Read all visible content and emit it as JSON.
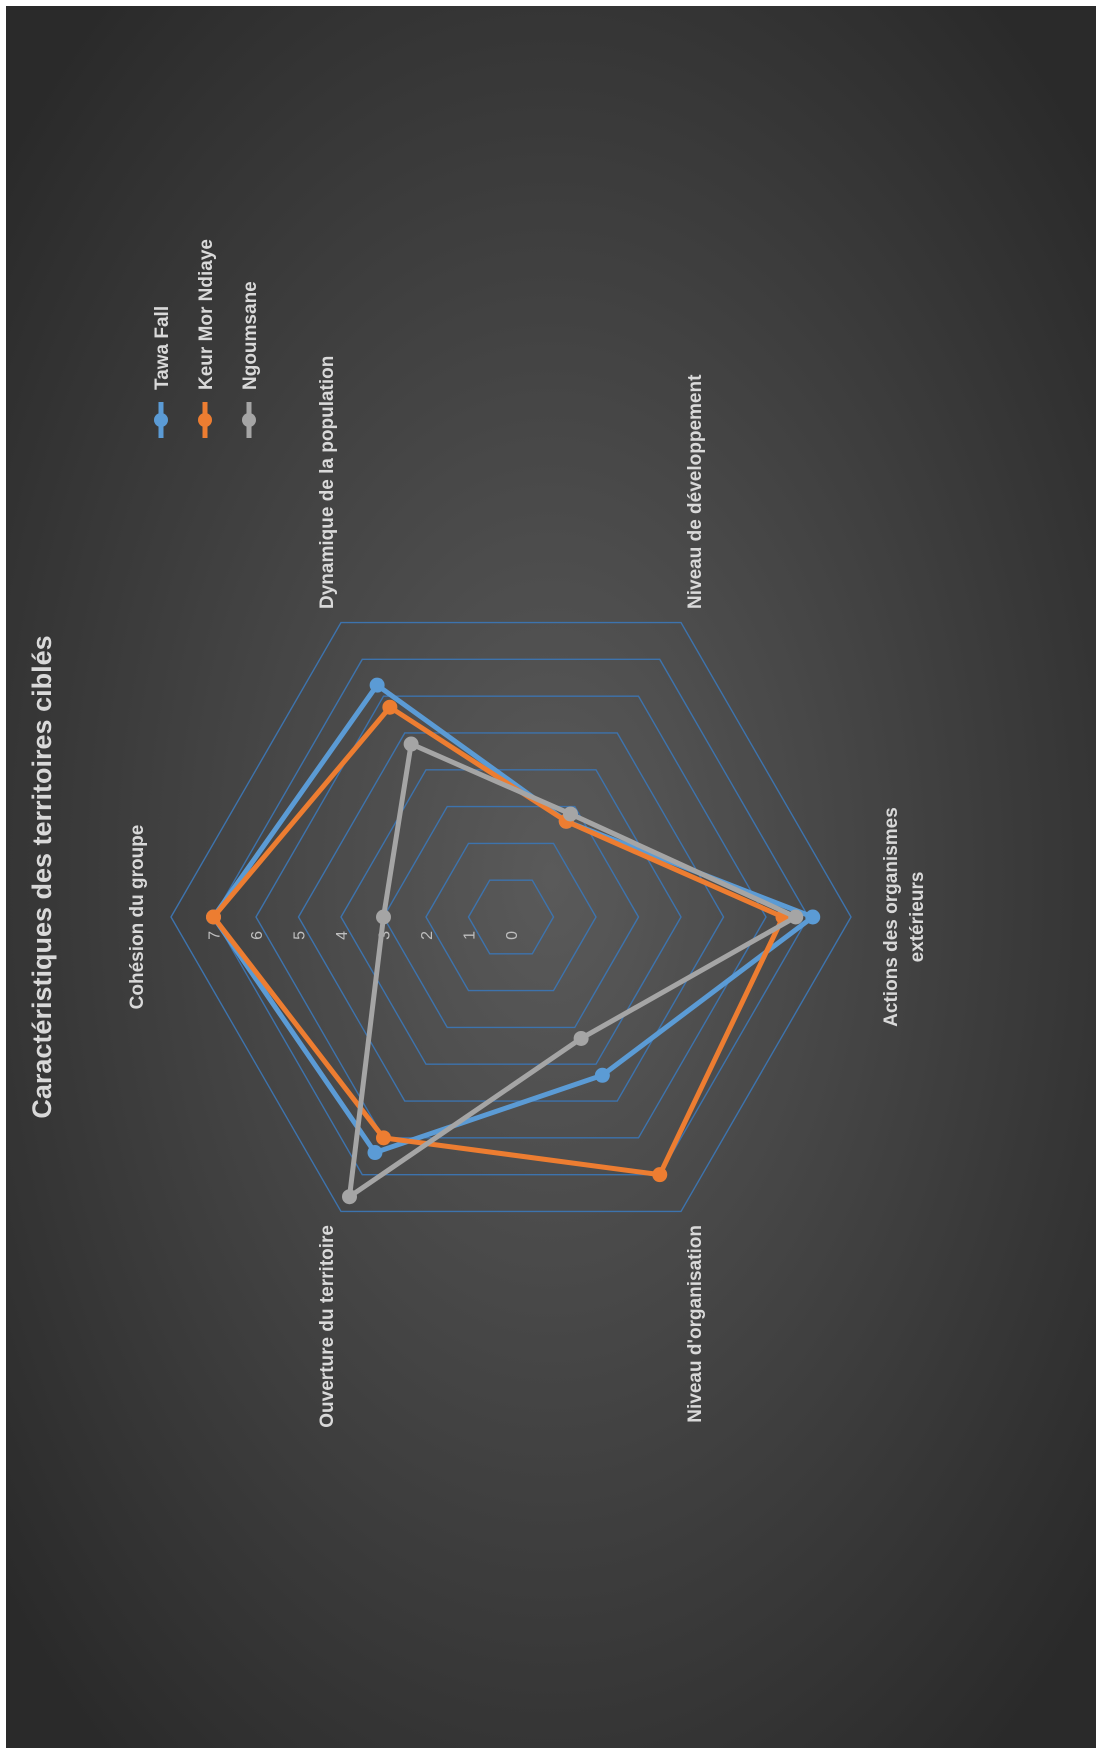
{
  "chart_data": {
    "type": "radar",
    "title": "Caractéristiques des territoires ciblés",
    "categories": [
      "Cohésion du groupe",
      "Dynamique de la population",
      "Niveau de développement",
      "Actions des organismes extérieurs",
      "Niveau d'organisation",
      "Ouverture du territoire"
    ],
    "category_label_lines": [
      [
        "Cohésion du groupe"
      ],
      [
        "Dynamique de la population"
      ],
      [
        "Niveau de développement"
      ],
      [
        "Actions des organismes",
        "extérieurs"
      ],
      [
        "Niveau d'organisation"
      ],
      [
        "Ouverture du territoire"
      ]
    ],
    "scale": {
      "min": 0,
      "max": 8,
      "step": 1
    },
    "tick_labels": [
      "0",
      "1",
      "2",
      "3",
      "4",
      "5",
      "6",
      "7"
    ],
    "series": [
      {
        "name": "Tawa Fall",
        "color": "#5b9bd5",
        "values": [
          7.0,
          6.3,
          2.6,
          7.1,
          4.3,
          6.4
        ]
      },
      {
        "name": "Keur Mor Ndiaye",
        "color": "#ed7d31",
        "values": [
          7.0,
          5.7,
          2.6,
          6.4,
          7.0,
          6.0
        ]
      },
      {
        "name": "Ngoumsane",
        "color": "#a5a5a5",
        "values": [
          3.0,
          4.7,
          2.8,
          6.7,
          3.3,
          7.6
        ]
      }
    ],
    "legend_position": "top-right",
    "grid": true,
    "colors": {
      "background": "#3a3a3a",
      "grid": "#3d73ad",
      "text": "#d9d9d9"
    }
  }
}
